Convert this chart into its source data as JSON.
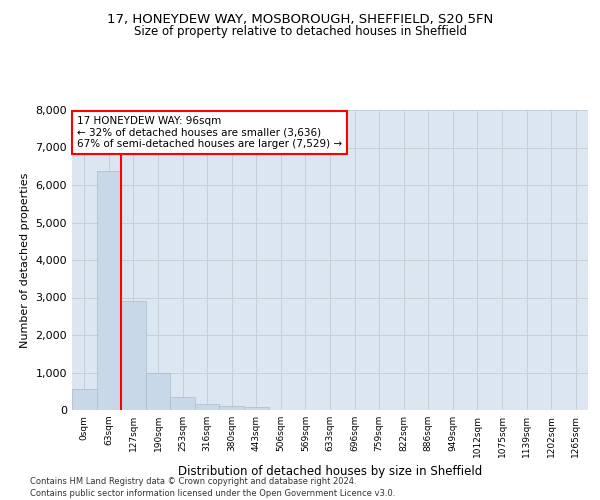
{
  "title_line1": "17, HONEYDEW WAY, MOSBOROUGH, SHEFFIELD, S20 5FN",
  "title_line2": "Size of property relative to detached houses in Sheffield",
  "xlabel": "Distribution of detached houses by size in Sheffield",
  "ylabel": "Number of detached properties",
  "bar_color": "#c8d8e8",
  "bar_edgecolor": "#aabccc",
  "grid_color": "#c5cfd8",
  "background_color": "#dce6f0",
  "categories": [
    "0sqm",
    "63sqm",
    "127sqm",
    "190sqm",
    "253sqm",
    "316sqm",
    "380sqm",
    "443sqm",
    "506sqm",
    "569sqm",
    "633sqm",
    "696sqm",
    "759sqm",
    "822sqm",
    "886sqm",
    "949sqm",
    "1012sqm",
    "1075sqm",
    "1139sqm",
    "1202sqm",
    "1265sqm"
  ],
  "values": [
    570,
    6380,
    2920,
    990,
    350,
    170,
    110,
    85,
    0,
    0,
    0,
    0,
    0,
    0,
    0,
    0,
    0,
    0,
    0,
    0,
    0
  ],
  "ylim": [
    0,
    8000
  ],
  "yticks": [
    0,
    1000,
    2000,
    3000,
    4000,
    5000,
    6000,
    7000,
    8000
  ],
  "property_line_x": 1.5,
  "annotation_title": "17 HONEYDEW WAY: 96sqm",
  "annotation_line1": "← 32% of detached houses are smaller (3,636)",
  "annotation_line2": "67% of semi-detached houses are larger (7,529) →",
  "annotation_box_color": "white",
  "annotation_box_edgecolor": "red",
  "vline_color": "red",
  "footer_line1": "Contains HM Land Registry data © Crown copyright and database right 2024.",
  "footer_line2": "Contains public sector information licensed under the Open Government Licence v3.0."
}
